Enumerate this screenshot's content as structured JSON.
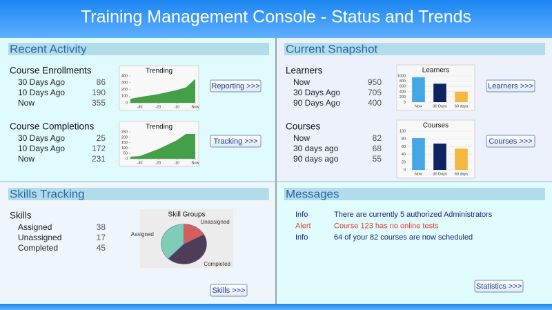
{
  "header": {
    "title": "Training Management Console - Status and Trends"
  },
  "panels": [
    {
      "title": "Recent Activity",
      "groups": [
        {
          "title": "Course Enrollments",
          "rows": [
            {
              "label": "30 Days Ago",
              "value": 86
            },
            {
              "label": "10 Days Ago",
              "value": 190
            },
            {
              "label": "Now",
              "value": 355
            }
          ],
          "chart": {
            "type": "area",
            "title": "Trending",
            "color": "#43a047",
            "x": [
              -35,
              -30,
              -20,
              -10,
              -5,
              0
            ],
            "values": [
              60,
              86,
              130,
              190,
              230,
              355
            ],
            "xlim": [
              -35,
              0
            ],
            "xticks": [
              -30,
              -20,
              -10,
              {
                "value": 0,
                "label": "Now"
              }
            ],
            "ylim": [
              0,
              400
            ],
            "yticks": [
              0,
              100,
              200,
              300,
              400
            ]
          },
          "button": "Reporting >>>"
        },
        {
          "title": "Course Completions",
          "rows": [
            {
              "label": "30 Days Ago",
              "value": 25
            },
            {
              "label": "10 Days Ago",
              "value": 172
            },
            {
              "label": "Now",
              "value": 231
            }
          ],
          "chart": {
            "type": "area",
            "title": "Trending",
            "color": "#43a047",
            "x": [
              -35,
              -30,
              -20,
              -10,
              -5,
              0
            ],
            "values": [
              20,
              25,
              90,
              172,
              231,
              231
            ],
            "xlim": [
              -35,
              0
            ],
            "xticks": [
              -30,
              -20,
              -10,
              {
                "value": 0,
                "label": "Now"
              }
            ],
            "ylim": [
              0,
              250
            ],
            "yticks": [
              0,
              50,
              100,
              150,
              200,
              250
            ]
          },
          "button": "Tracking >>>"
        }
      ]
    },
    {
      "title": "Current Snapshot",
      "groups": [
        {
          "title": "Learners",
          "rows": [
            {
              "label": "Now",
              "value": 950
            },
            {
              "label": "30 Days Ago",
              "value": 705
            },
            {
              "label": "90 Days Ago",
              "value": 400
            }
          ],
          "chart": {
            "type": "bar",
            "title": "Learners",
            "categories": [
              "Now",
              "30 Days",
              "60 days"
            ],
            "values": [
              950,
              705,
              400
            ],
            "colors": [
              "#45a6e6",
              "#0d2460",
              "#f4b73f"
            ],
            "ylim": [
              0,
              1000
            ],
            "yticks": [
              0,
              200,
              400,
              600,
              800,
              1000
            ]
          },
          "button": "Learners >>>"
        },
        {
          "title": "Courses",
          "rows": [
            {
              "label": "Now",
              "value": 82
            },
            {
              "label": "30 days ago",
              "value": 68
            },
            {
              "label": "90 days ago",
              "value": 55
            }
          ],
          "chart": {
            "type": "bar",
            "title": "Courses",
            "categories": [
              "Now",
              "30 Days",
              "60 days"
            ],
            "values": [
              82,
              68,
              55
            ],
            "colors": [
              "#45a6e6",
              "#0d2460",
              "#f4b73f"
            ],
            "ylim": [
              0,
              100
            ],
            "yticks": [
              0,
              20,
              40,
              60,
              80,
              100
            ]
          },
          "button": "Courses >>>"
        }
      ]
    },
    {
      "title": "Skills Tracking",
      "groups": [
        {
          "title": "Skills",
          "rows": [
            {
              "label": "Assigned",
              "value": 38
            },
            {
              "label": "Unassigned",
              "value": 17
            },
            {
              "label": "Completed",
              "value": 45
            }
          ],
          "chart": {
            "type": "pie",
            "title": "Skill Groups",
            "categories": [
              "Assigned",
              "Unassigned",
              "Completed"
            ],
            "values": [
              38,
              17,
              45
            ],
            "colors": [
              "#7fcdb6",
              "#d65f5e",
              "#4e3d58"
            ]
          },
          "button": "Skills >>>"
        }
      ]
    },
    {
      "title": "Messages",
      "messages": [
        {
          "level": "Info",
          "text": "There are currently 5 authorized Administrators",
          "color": "#1a237e"
        },
        {
          "level": "Alert",
          "text": "Course 123 has no online tests",
          "color": "#e53935"
        },
        {
          "level": "Info",
          "text": "64 of your 82 courses are now scheduled",
          "color": "#1a237e"
        }
      ],
      "button": "Statistics >>>"
    }
  ]
}
